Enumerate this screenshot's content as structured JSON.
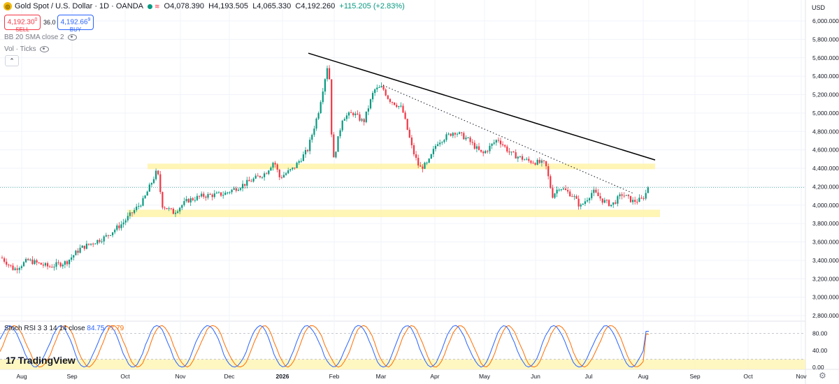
{
  "header": {
    "symbol": "Gold Spot / U.S. Dollar · 1D · OANDA",
    "open": "O4,078.390",
    "high": "H4,193.505",
    "low": "L4,065.330",
    "close": "C4,192.260",
    "change": "+115.205 (+2.83%)"
  },
  "trade": {
    "sell_price": "4,192.30",
    "sell_sup": "0",
    "sell_label": "SELL",
    "spread": "36.0",
    "buy_price": "4,192.66",
    "buy_sup": "9",
    "buy_label": "BUY"
  },
  "indicators": {
    "bb": "BB 20 SMA close 2",
    "vol": "Vol · Ticks",
    "stoch_label": "Stoch RSI 3 3 14 14 close",
    "stoch_k": "84.75",
    "stoch_d": "77.79"
  },
  "axis": {
    "currency": "USD"
  },
  "branding": "TradingView",
  "colors": {
    "up": "#089981",
    "down": "#f23645",
    "k": "#2962ff",
    "d": "#ff6d00",
    "zone": "#fff3a8"
  },
  "chart_data": {
    "type": "candlestick",
    "y_ticks": [
      "6,000.000",
      "5,800.000",
      "5,600.000",
      "5,400.000",
      "5,200.000",
      "5,000.000",
      "4,800.000",
      "4,600.000",
      "4,400.000",
      "4,200.000",
      "4,000.000",
      "3,800.000",
      "3,600.000",
      "3,400.000",
      "3,200.000",
      "3,000.000",
      "2,800.000"
    ],
    "ylim": [
      2800,
      6050
    ],
    "x_labels": [
      "Aug",
      "Sep",
      "Oct",
      "Nov",
      "Dec",
      "2026",
      "Feb",
      "Mar",
      "Apr",
      "May",
      "Jun",
      "Jul",
      "Aug",
      "Sep",
      "Oct",
      "Nov"
    ],
    "price_series_approx": [
      {
        "x": "Aug",
        "close": 3420
      },
      {
        "x": "Sep",
        "close": 3580
      },
      {
        "x": "Oct",
        "close": 3880
      },
      {
        "x": "Oct",
        "close": 4380
      },
      {
        "x": "Nov",
        "close": 4000
      },
      {
        "x": "Dec",
        "close": 4200
      },
      {
        "x": "2026",
        "close": 4450
      },
      {
        "x": "Jan",
        "close": 5000
      },
      {
        "x": "Feb",
        "close": 4850
      },
      {
        "x": "Mar",
        "close": 5300
      },
      {
        "x": "Mar",
        "close": 4500
      },
      {
        "x": "Apr",
        "close": 4800
      },
      {
        "x": "May",
        "close": 4650
      },
      {
        "x": "Jun",
        "close": 4300
      },
      {
        "x": "Jun",
        "close": 4000
      },
      {
        "x": "Jul",
        "close": 4150
      },
      {
        "x": "Aug",
        "close": 4192
      }
    ],
    "resistance_zone": [
      4390,
      4450
    ],
    "support_zone": [
      3870,
      3950
    ],
    "trendline_upper": {
      "start": [
        5650,
        "late Jan"
      ],
      "end": [
        4480,
        "early Aug"
      ]
    },
    "trendline_dotted": {
      "start": [
        5300,
        "early Mar"
      ],
      "end": [
        4130,
        "late Jul"
      ]
    },
    "stoch_ticks": [
      "80.00",
      "40.00",
      "0.00"
    ],
    "stoch_k": 84.75,
    "stoch_d": 77.79
  }
}
